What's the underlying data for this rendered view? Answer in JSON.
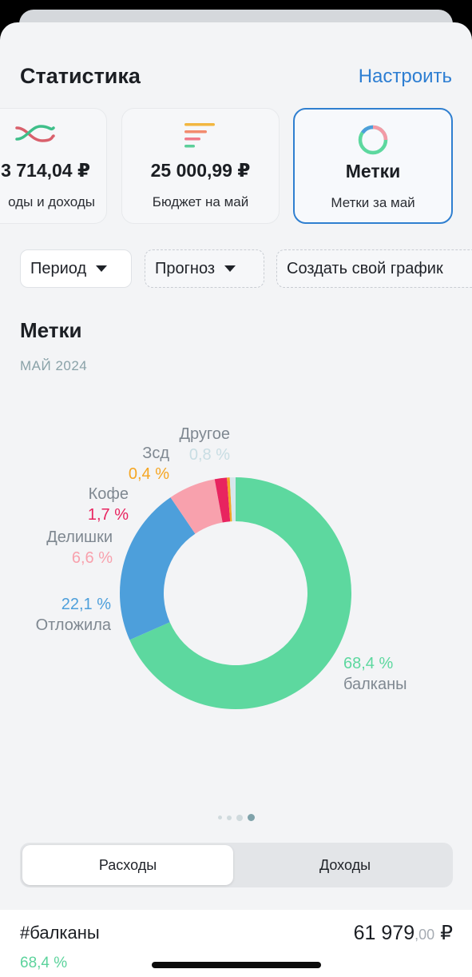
{
  "header": {
    "title": "Статистика",
    "customize": "Настроить"
  },
  "cards": [
    {
      "value": "3 714,04 ₽",
      "caption": "оды и доходы",
      "icon": "crossing-lines-icon"
    },
    {
      "value": "25 000,99 ₽",
      "caption": "Бюджет на май",
      "icon": "budget-bars-icon"
    },
    {
      "value": "Метки",
      "caption": "Метки за май",
      "icon": "ring-chart-icon",
      "selected": true
    }
  ],
  "filters": {
    "period": "Период",
    "forecast": "Прогноз",
    "custom": "Создать свой график"
  },
  "section": {
    "title": "Метки",
    "subtitle": "МАЙ 2024"
  },
  "chart_data": {
    "type": "pie",
    "donut": true,
    "slices": [
      {
        "name": "балканы",
        "percent": 68.4,
        "label": "68,4 %",
        "color": "#5dd89f"
      },
      {
        "name": "Отложила",
        "percent": 22.1,
        "label": "22,1 %",
        "color": "#4d9fdb"
      },
      {
        "name": "Делишки",
        "percent": 6.6,
        "label": "6,6 %",
        "color": "#f8a1ad"
      },
      {
        "name": "Кофе",
        "percent": 1.7,
        "label": "1,7 %",
        "color": "#e8245f"
      },
      {
        "name": "Зсд",
        "percent": 0.4,
        "label": "0,4 %",
        "color": "#f5a623"
      },
      {
        "name": "Другое",
        "percent": 0.8,
        "label": "0,8 %",
        "color": "#d7e7ec"
      }
    ]
  },
  "pager": {
    "count": 4,
    "active": 3
  },
  "tabs": {
    "expenses": "Расходы",
    "income": "Доходы",
    "active": "expenses"
  },
  "list": [
    {
      "name": "#балканы",
      "percent": "68,4 %",
      "amount": "61 979",
      "cents": ",00",
      "currency": "₽"
    }
  ]
}
